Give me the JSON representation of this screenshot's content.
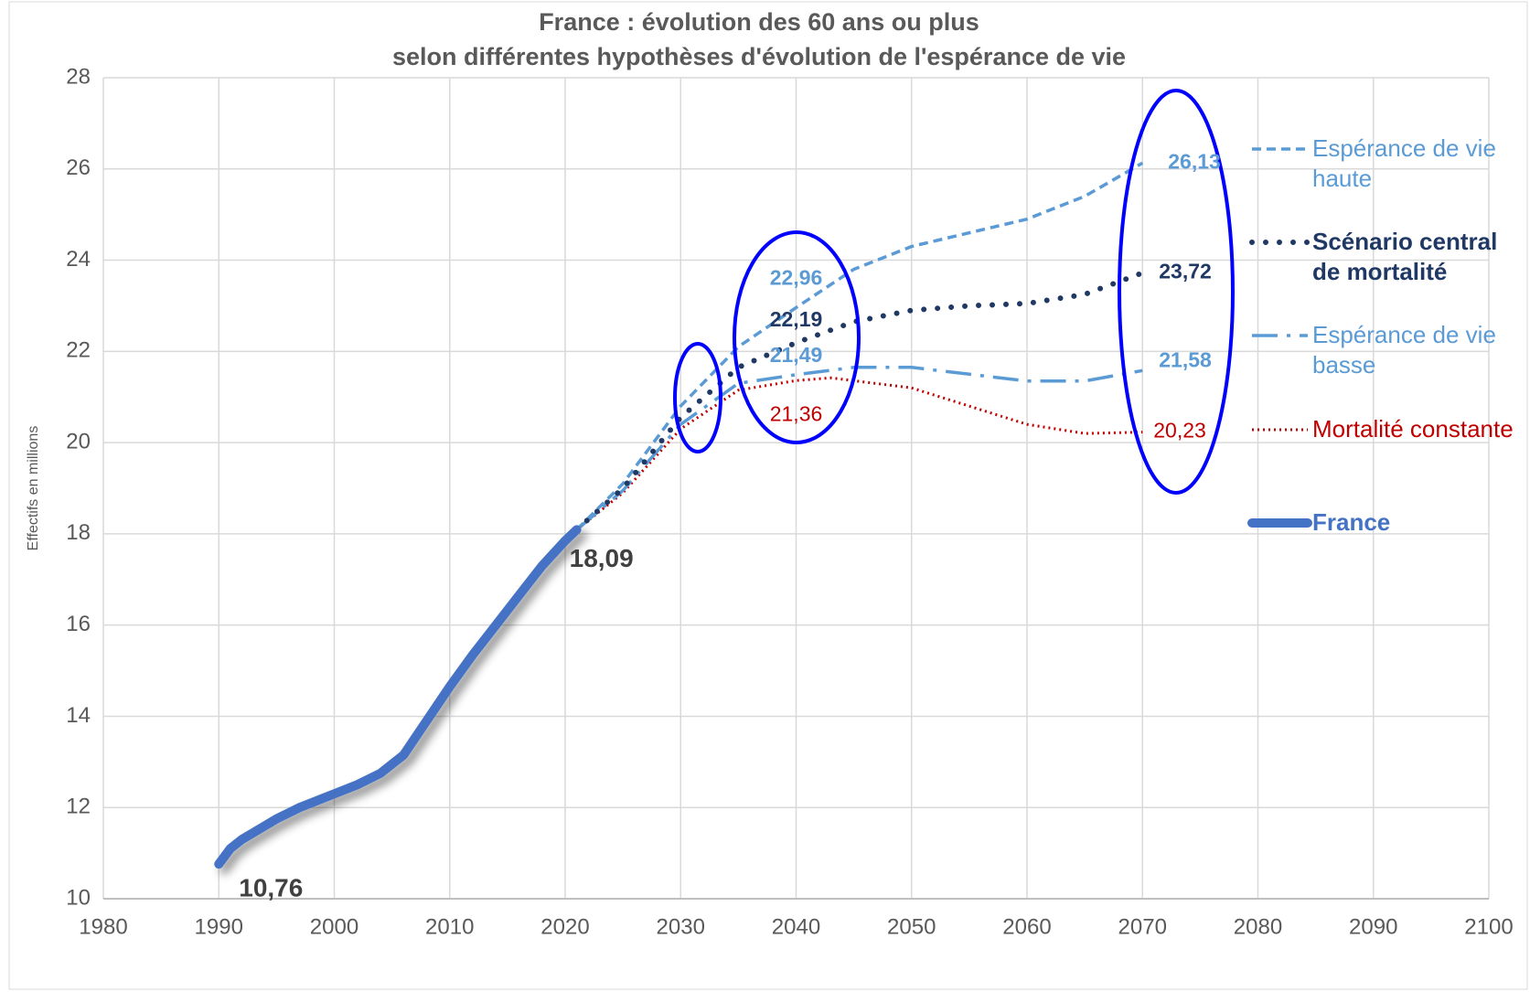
{
  "chart_data": {
    "type": "line",
    "title": "France : évolution des 60 ans ou plus",
    "subtitle": "selon différentes hypothèses d'évolution de l'espérance de vie",
    "y_label": "Effectifs en millions",
    "xlim": [
      1980,
      2100
    ],
    "xticks": [
      1980,
      1990,
      2000,
      2010,
      2020,
      2030,
      2040,
      2050,
      2060,
      2070,
      2080,
      2090,
      2100
    ],
    "ylim": [
      10,
      28
    ],
    "yticks": [
      10,
      12,
      14,
      16,
      18,
      20,
      22,
      24,
      26,
      28
    ],
    "grid": true,
    "legend": "right",
    "series": [
      {
        "name": "Espérance de vie haute",
        "color": "#5b9bd5",
        "style": "dashed",
        "x": [
          2021,
          2025,
          2030,
          2035,
          2040,
          2045,
          2050,
          2055,
          2060,
          2065,
          2070
        ],
        "values": [
          18.09,
          19.1,
          20.8,
          22.1,
          22.96,
          23.8,
          24.3,
          24.6,
          24.9,
          25.4,
          26.13
        ],
        "value_labels": [
          null,
          null,
          null,
          null,
          "22,96",
          null,
          null,
          null,
          null,
          null,
          "26,13"
        ]
      },
      {
        "name": "Scénario central de mortalité",
        "color": "#1f3864",
        "style": "dotted-large",
        "x": [
          2021,
          2025,
          2030,
          2035,
          2040,
          2045,
          2050,
          2055,
          2060,
          2065,
          2070
        ],
        "values": [
          18.09,
          19.0,
          20.55,
          21.65,
          22.19,
          22.65,
          22.9,
          23.0,
          23.05,
          23.25,
          23.72
        ],
        "value_labels": [
          null,
          null,
          null,
          null,
          "22,19",
          null,
          null,
          null,
          null,
          null,
          "23,72"
        ]
      },
      {
        "name": "Espérance de vie basse",
        "color": "#5b9bd5",
        "style": "dash-dot",
        "x": [
          2021,
          2025,
          2030,
          2035,
          2040,
          2045,
          2050,
          2055,
          2060,
          2065,
          2070
        ],
        "values": [
          18.09,
          18.95,
          20.4,
          21.3,
          21.49,
          21.65,
          21.65,
          21.5,
          21.35,
          21.35,
          21.58
        ],
        "value_labels": [
          null,
          null,
          null,
          null,
          "21,49",
          null,
          null,
          null,
          null,
          null,
          "21,58"
        ]
      },
      {
        "name": "Mortalité constante",
        "color": "#c00000",
        "style": "dotted",
        "x": [
          2021,
          2025,
          2030,
          2035,
          2040,
          2043,
          2050,
          2055,
          2060,
          2065,
          2070
        ],
        "values": [
          18.09,
          18.9,
          20.3,
          21.15,
          21.36,
          21.42,
          21.2,
          20.8,
          20.4,
          20.2,
          20.23
        ],
        "value_labels": [
          null,
          null,
          null,
          null,
          "21,36",
          null,
          null,
          null,
          null,
          null,
          "20,23"
        ]
      },
      {
        "name": "France",
        "color": "#4472c4",
        "style": "solid",
        "x": [
          1990,
          1991,
          1992,
          1993,
          1995,
          1997,
          2000,
          2002,
          2004,
          2006,
          2008,
          2010,
          2012,
          2014,
          2016,
          2018,
          2020,
          2021
        ],
        "values": [
          10.76,
          11.1,
          11.3,
          11.45,
          11.75,
          12.0,
          12.3,
          12.5,
          12.75,
          13.15,
          13.9,
          14.65,
          15.35,
          16.0,
          16.65,
          17.3,
          17.85,
          18.09
        ],
        "value_labels": [
          "10,76",
          null,
          null,
          null,
          null,
          null,
          null,
          null,
          null,
          null,
          null,
          null,
          null,
          null,
          null,
          null,
          null,
          "18,09"
        ]
      }
    ]
  }
}
